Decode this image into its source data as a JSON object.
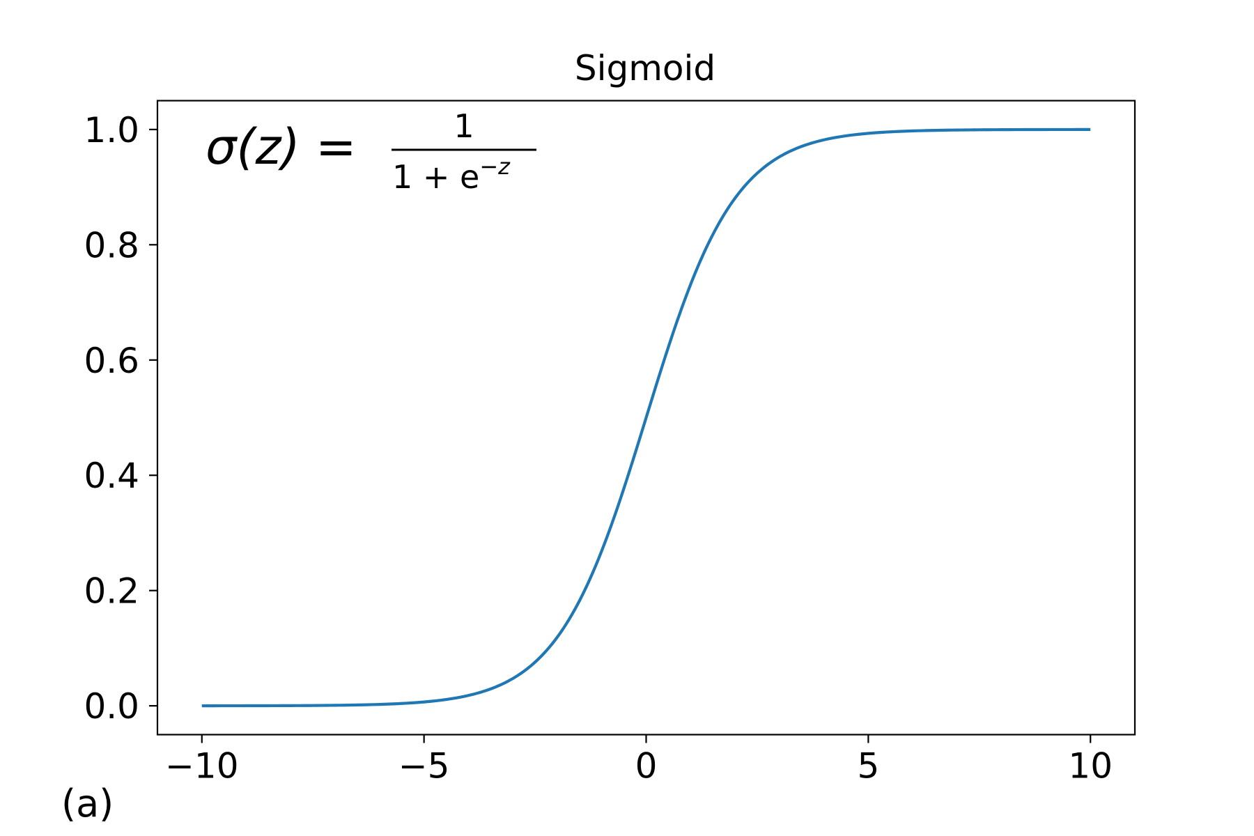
{
  "chart_data": {
    "type": "line",
    "title": "Sigmoid",
    "xlabel": "",
    "ylabel": "",
    "xlim": [
      -11,
      11
    ],
    "ylim": [
      -0.05,
      1.05
    ],
    "x_ticks": [
      -10,
      -5,
      0,
      5,
      10
    ],
    "x_tick_labels": [
      "−10",
      "−5",
      "0",
      "5",
      "10"
    ],
    "y_ticks": [
      0.0,
      0.2,
      0.4,
      0.6,
      0.8,
      1.0
    ],
    "y_tick_labels": [
      "0.0",
      "0.2",
      "0.4",
      "0.6",
      "0.8",
      "1.0"
    ],
    "grid": false,
    "legend": "none",
    "annotation": {
      "lhs": "σ(z) =",
      "numerator": "1",
      "denominator_base": "1 + e",
      "denominator_exponent": "−z"
    },
    "panel_label": "(a)",
    "series": [
      {
        "color": "#1f77b4",
        "x": [
          -10,
          -9,
          -8,
          -7,
          -6,
          -5,
          -4,
          -3,
          -2.5,
          -2,
          -1.5,
          -1,
          -0.5,
          0,
          0.5,
          1,
          1.5,
          2,
          2.5,
          3,
          4,
          5,
          6,
          7,
          8,
          9,
          10
        ],
        "y": [
          5e-05,
          0.00012,
          0.00034,
          0.00091,
          0.00247,
          0.00669,
          0.01799,
          0.04743,
          0.07586,
          0.1192,
          0.18243,
          0.26894,
          0.37754,
          0.5,
          0.62246,
          0.73106,
          0.81757,
          0.8808,
          0.92414,
          0.95257,
          0.98201,
          0.99331,
          0.99753,
          0.99909,
          0.99966,
          0.99988,
          0.99995
        ]
      }
    ]
  }
}
